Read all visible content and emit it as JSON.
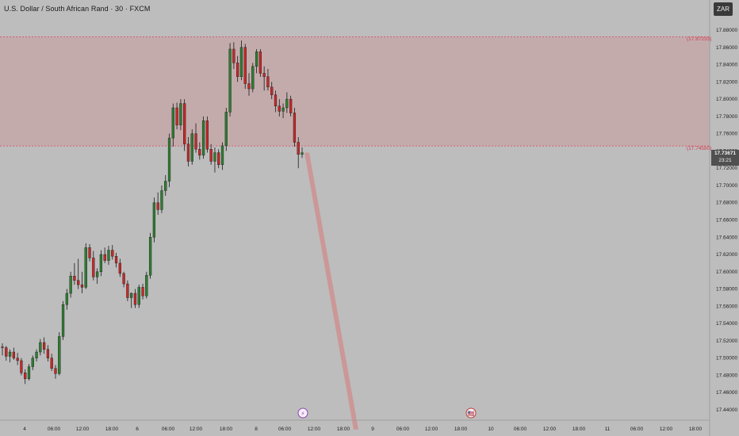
{
  "header": {
    "symbol_title": "U.S. Dollar / South African Rand · 30 · FXCM",
    "currency_badge": "ZAR"
  },
  "current_price": {
    "value": "17.73671",
    "countdown": "23:21"
  },
  "levels": {
    "upper": "(17.87233)",
    "lower": "(17.74580)"
  },
  "price_axis": {
    "ticks": [
      "17.88000",
      "17.86000",
      "17.84000",
      "17.82000",
      "17.80000",
      "17.78000",
      "17.76000",
      "17.74000",
      "17.72000",
      "17.70000",
      "17.68000",
      "17.66000",
      "17.64000",
      "17.62000",
      "17.60000",
      "17.58000",
      "17.56000",
      "17.54000",
      "17.52000",
      "17.50000",
      "17.48000",
      "17.46000",
      "17.44000"
    ]
  },
  "time_axis": {
    "labels": [
      "4",
      "06:00",
      "12:00",
      "18:00",
      "6",
      "06:00",
      "12:00",
      "18:00",
      "8",
      "06:00",
      "12:00",
      "18:00",
      "9",
      "06:00",
      "12:00",
      "18:00",
      "10",
      "06:00",
      "12:00",
      "18:00",
      "11",
      "06:00",
      "12:00",
      "18:00"
    ]
  },
  "events": [
    {
      "name": "lightning-event-icon",
      "glyph": "⚡"
    },
    {
      "name": "us-flag-event-icon",
      "glyph": "🇺🇸"
    }
  ],
  "colors": {
    "background": "#bdbdbd",
    "bull": "#2e7d32",
    "bear": "#c62828",
    "zone": "#c4a8a9",
    "level_line": "#e0455a"
  },
  "chart_data": {
    "type": "candlestick",
    "symbol": "USDZAR",
    "timeframe": "30",
    "ylim": [
      17.43,
      17.89
    ],
    "resistance_zone": [
      17.7458,
      17.87233
    ],
    "projection": {
      "from": 17.738,
      "to": 17.43
    },
    "ohlc": [
      [
        17.513,
        17.517,
        17.503,
        17.512
      ],
      [
        17.512,
        17.514,
        17.497,
        17.502
      ],
      [
        17.502,
        17.51,
        17.495,
        17.507
      ],
      [
        17.507,
        17.512,
        17.498,
        17.5
      ],
      [
        17.5,
        17.506,
        17.492,
        17.497
      ],
      [
        17.497,
        17.5,
        17.48,
        17.483
      ],
      [
        17.483,
        17.487,
        17.47,
        17.476
      ],
      [
        17.476,
        17.493,
        17.474,
        17.49
      ],
      [
        17.49,
        17.503,
        17.486,
        17.5
      ],
      [
        17.5,
        17.51,
        17.496,
        17.507
      ],
      [
        17.507,
        17.522,
        17.503,
        17.518
      ],
      [
        17.518,
        17.524,
        17.505,
        17.51
      ],
      [
        17.51,
        17.515,
        17.496,
        17.5
      ],
      [
        17.5,
        17.505,
        17.485,
        17.488
      ],
      [
        17.488,
        17.492,
        17.476,
        17.482
      ],
      [
        17.482,
        17.53,
        17.48,
        17.525
      ],
      [
        17.525,
        17.566,
        17.521,
        17.562
      ],
      [
        17.562,
        17.58,
        17.556,
        17.575
      ],
      [
        17.575,
        17.6,
        17.57,
        17.595
      ],
      [
        17.595,
        17.61,
        17.585,
        17.59
      ],
      [
        17.59,
        17.615,
        17.58,
        17.585
      ],
      [
        17.585,
        17.6,
        17.575,
        17.582
      ],
      [
        17.582,
        17.633,
        17.58,
        17.628
      ],
      [
        17.628,
        17.632,
        17.612,
        17.616
      ],
      [
        17.616,
        17.624,
        17.59,
        17.594
      ],
      [
        17.594,
        17.604,
        17.586,
        17.6
      ],
      [
        17.6,
        17.625,
        17.595,
        17.62
      ],
      [
        17.62,
        17.628,
        17.61,
        17.613
      ],
      [
        17.613,
        17.63,
        17.608,
        17.625
      ],
      [
        17.625,
        17.631,
        17.614,
        17.618
      ],
      [
        17.618,
        17.622,
        17.605,
        17.61
      ],
      [
        17.61,
        17.615,
        17.594,
        17.598
      ],
      [
        17.598,
        17.6,
        17.582,
        17.586
      ],
      [
        17.586,
        17.59,
        17.566,
        17.57
      ],
      [
        17.57,
        17.576,
        17.558,
        17.575
      ],
      [
        17.575,
        17.58,
        17.558,
        17.562
      ],
      [
        17.562,
        17.585,
        17.558,
        17.582
      ],
      [
        17.582,
        17.586,
        17.568,
        17.572
      ],
      [
        17.572,
        17.6,
        17.569,
        17.596
      ],
      [
        17.596,
        17.645,
        17.592,
        17.64
      ],
      [
        17.64,
        17.686,
        17.634,
        17.68
      ],
      [
        17.68,
        17.692,
        17.666,
        17.672
      ],
      [
        17.672,
        17.7,
        17.668,
        17.694
      ],
      [
        17.694,
        17.712,
        17.688,
        17.705
      ],
      [
        17.705,
        17.76,
        17.698,
        17.755
      ],
      [
        17.755,
        17.795,
        17.745,
        17.79
      ],
      [
        17.79,
        17.796,
        17.765,
        17.77
      ],
      [
        17.77,
        17.8,
        17.764,
        17.795
      ],
      [
        17.795,
        17.8,
        17.74,
        17.748
      ],
      [
        17.748,
        17.756,
        17.722,
        17.728
      ],
      [
        17.728,
        17.765,
        17.724,
        17.76
      ],
      [
        17.76,
        17.772,
        17.738,
        17.742
      ],
      [
        17.742,
        17.75,
        17.73,
        17.735
      ],
      [
        17.735,
        17.78,
        17.731,
        17.775
      ],
      [
        17.775,
        17.78,
        17.738,
        17.742
      ],
      [
        17.742,
        17.748,
        17.724,
        17.728
      ],
      [
        17.728,
        17.744,
        17.715,
        17.738
      ],
      [
        17.738,
        17.742,
        17.72,
        17.724
      ],
      [
        17.724,
        17.75,
        17.718,
        17.746
      ],
      [
        17.746,
        17.79,
        17.74,
        17.785
      ],
      [
        17.785,
        17.865,
        17.78,
        17.858
      ],
      [
        17.858,
        17.866,
        17.835,
        17.842
      ],
      [
        17.842,
        17.85,
        17.82,
        17.826
      ],
      [
        17.826,
        17.868,
        17.822,
        17.86
      ],
      [
        17.86,
        17.864,
        17.812,
        17.818
      ],
      [
        17.818,
        17.83,
        17.804,
        17.812
      ],
      [
        17.812,
        17.842,
        17.808,
        17.838
      ],
      [
        17.838,
        17.858,
        17.83,
        17.855
      ],
      [
        17.855,
        17.858,
        17.826,
        17.83
      ],
      [
        17.83,
        17.838,
        17.81,
        17.826
      ],
      [
        17.826,
        17.835,
        17.81,
        17.814
      ],
      [
        17.814,
        17.82,
        17.8,
        17.805
      ],
      [
        17.805,
        17.81,
        17.785,
        17.792
      ],
      [
        17.792,
        17.8,
        17.78,
        17.786
      ],
      [
        17.786,
        17.795,
        17.778,
        17.79
      ],
      [
        17.79,
        17.808,
        17.784,
        17.8
      ],
      [
        17.8,
        17.804,
        17.78,
        17.784
      ],
      [
        17.784,
        17.79,
        17.745,
        17.75
      ],
      [
        17.75,
        17.756,
        17.72,
        17.736
      ],
      [
        17.736,
        17.744,
        17.732,
        17.738
      ]
    ]
  }
}
